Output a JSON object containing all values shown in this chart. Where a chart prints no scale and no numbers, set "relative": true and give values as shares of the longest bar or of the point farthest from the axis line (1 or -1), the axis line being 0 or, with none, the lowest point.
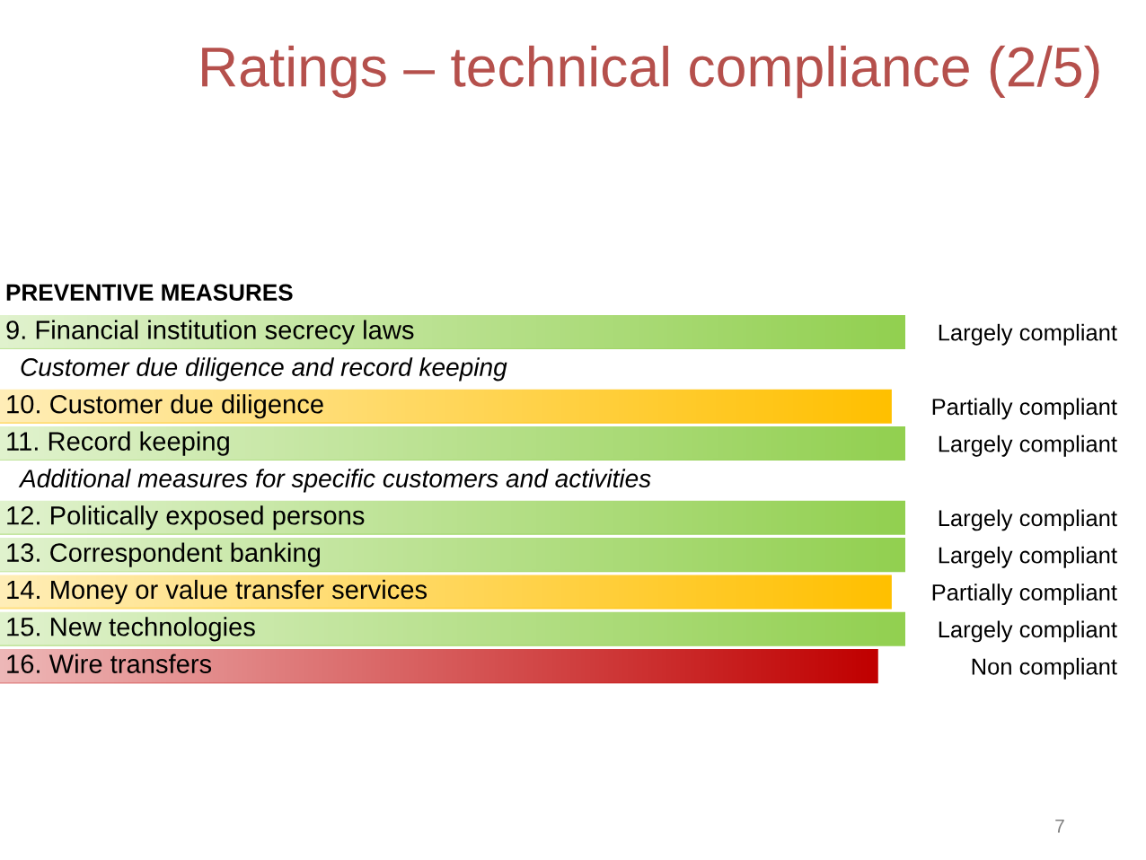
{
  "chart_data": {
    "type": "bar",
    "orientation": "horizontal",
    "relative": true,
    "title": "Ratings – technical compliance (2/5)",
    "ylabel": "PREVENTIVE MEASURES",
    "categories": [
      "9. Financial institution secrecy laws",
      "Customer due diligence and record keeping",
      "10. Customer due diligence",
      "11. Record keeping",
      "Additional measures for specific customers and activities",
      "12. Politically exposed persons",
      "13. Correspondent banking",
      "14. Money or value transfer services",
      "15. New technologies",
      "16. Wire transfers"
    ],
    "y2_categories": [
      "Largely compliant",
      null,
      "Partially compliant",
      "Largely compliant",
      null,
      "Largely compliant",
      "Largely compliant",
      "Partially compliant",
      "Largely compliant",
      "Non compliant"
    ],
    "values": [
      1,
      null,
      0.985,
      1,
      null,
      1,
      1,
      0.985,
      1,
      0.97
    ],
    "colors": [
      "#92d050",
      null,
      "#ffc000",
      "#92d050",
      null,
      "#92d050",
      "#92d050",
      "#ffc000",
      "#92d050",
      "#c00000"
    ],
    "annotations": [
      "7"
    ]
  }
}
